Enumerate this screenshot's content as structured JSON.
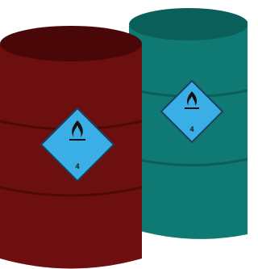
{
  "barrels": [
    {
      "label": {
        "class": "4"
      }
    },
    {
      "label": {
        "class": "4"
      }
    }
  ]
}
